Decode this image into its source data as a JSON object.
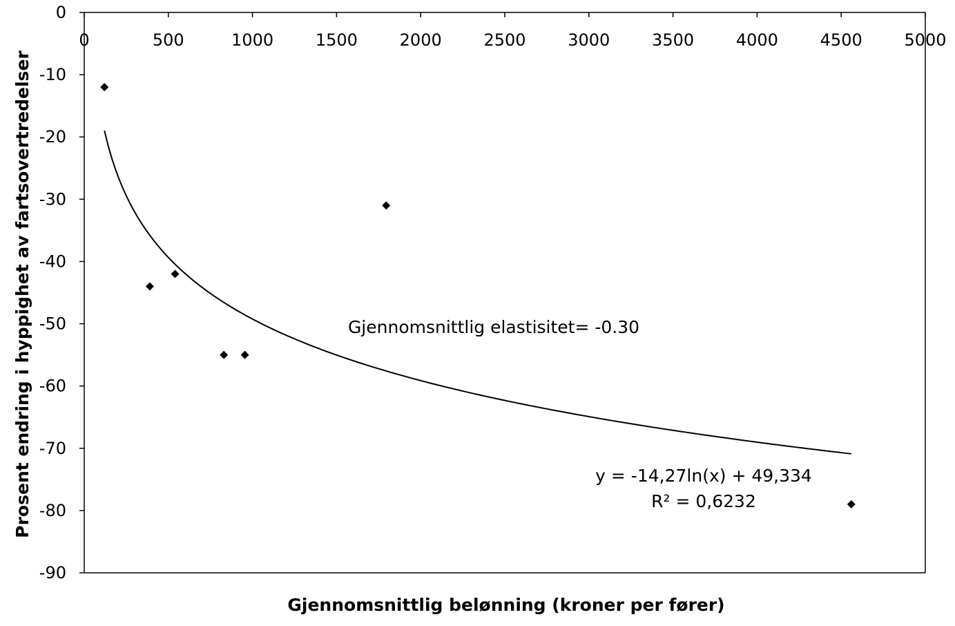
{
  "chart_data": {
    "type": "scatter",
    "xlabel": "Gjennomsnittlig belønning (kroner per fører)",
    "ylabel": "Prosent endring i hyppighet av fartsovertredelser",
    "xlim": [
      0,
      5000
    ],
    "ylim": [
      -90,
      0
    ],
    "x_ticks": [
      0,
      500,
      1000,
      1500,
      2000,
      2500,
      3000,
      3500,
      4000,
      4500,
      5000
    ],
    "y_ticks": [
      0,
      -10,
      -20,
      -30,
      -40,
      -50,
      -60,
      -70,
      -80,
      -90
    ],
    "x_axis_position": "top",
    "grid": false,
    "legend": "none",
    "series": [
      {
        "marker": "diamond",
        "color": "#000000",
        "points": [
          {
            "x": 120,
            "y": -12
          },
          {
            "x": 390,
            "y": -44
          },
          {
            "x": 540,
            "y": -42
          },
          {
            "x": 830,
            "y": -55
          },
          {
            "x": 955,
            "y": -55
          },
          {
            "x": 1795,
            "y": -31
          },
          {
            "x": 4560,
            "y": -79
          }
        ]
      }
    ],
    "trendline": {
      "type": "logarithmic",
      "a": -14.27,
      "b": 49.334,
      "x_range": [
        120,
        4560
      ],
      "color": "#000000"
    },
    "annotations": {
      "elasticity": "Gjennomsnittlig elastisitet= -0.30",
      "equation": "y = -14,27ln(x) + 49,334",
      "r_squared": "R² = 0,6232"
    }
  }
}
